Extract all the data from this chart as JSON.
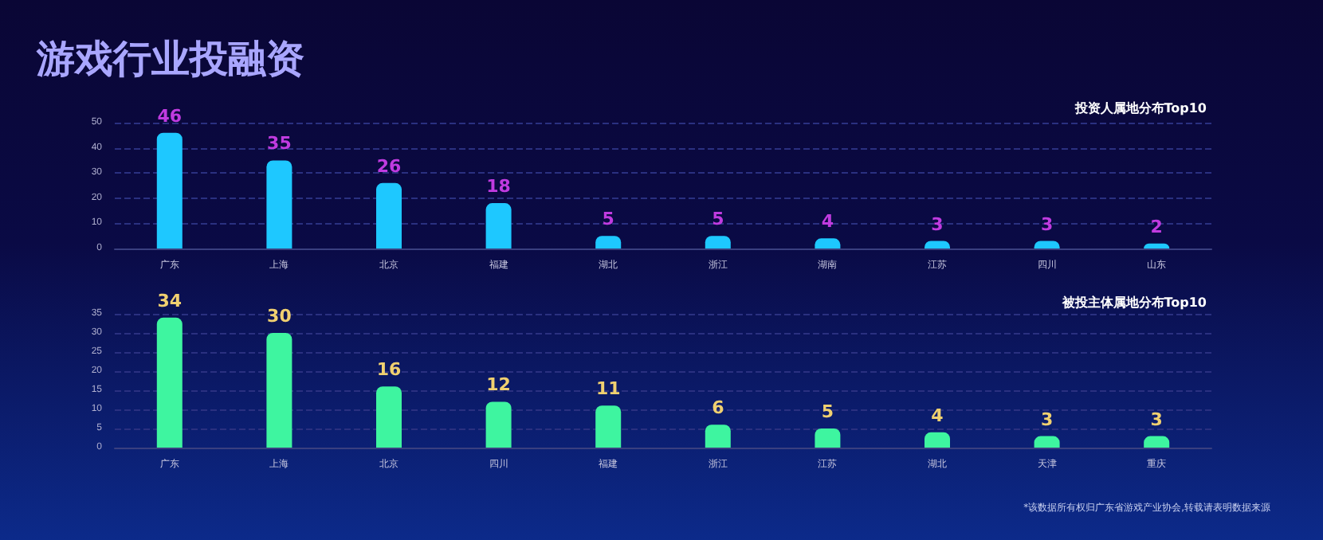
{
  "chart_data": [
    {
      "type": "bar",
      "title": "游戏行业投融资",
      "subtitle": "投资人属地分布Top10",
      "categories": [
        "广东",
        "上海",
        "北京",
        "福建",
        "湖北",
        "浙江",
        "湖南",
        "江苏",
        "四川",
        "山东"
      ],
      "values": [
        46,
        35,
        26,
        18,
        5,
        5,
        4,
        3,
        3,
        2
      ],
      "color": "#1ec8ff",
      "ylim": [
        0,
        50
      ],
      "yticks": [
        0,
        10,
        20,
        30,
        40,
        50
      ],
      "grid": "y",
      "data_labels": true
    },
    {
      "type": "bar",
      "title": "被投主体属地分布Top10",
      "categories": [
        "广东",
        "上海",
        "北京",
        "四川",
        "福建",
        "浙江",
        "江苏",
        "湖北",
        "天津",
        "重庆"
      ],
      "values": [
        34,
        30,
        16,
        12,
        11,
        6,
        5,
        4,
        3,
        3
      ],
      "color": "#3ef5a0",
      "ylim": [
        0,
        35
      ],
      "yticks": [
        0,
        5,
        10,
        15,
        20,
        25,
        30,
        35
      ],
      "grid": "y",
      "data_labels": true,
      "annotations": [
        "*该数据所有权归广东省游戏产业协会,转载请表明数据来源"
      ]
    }
  ]
}
